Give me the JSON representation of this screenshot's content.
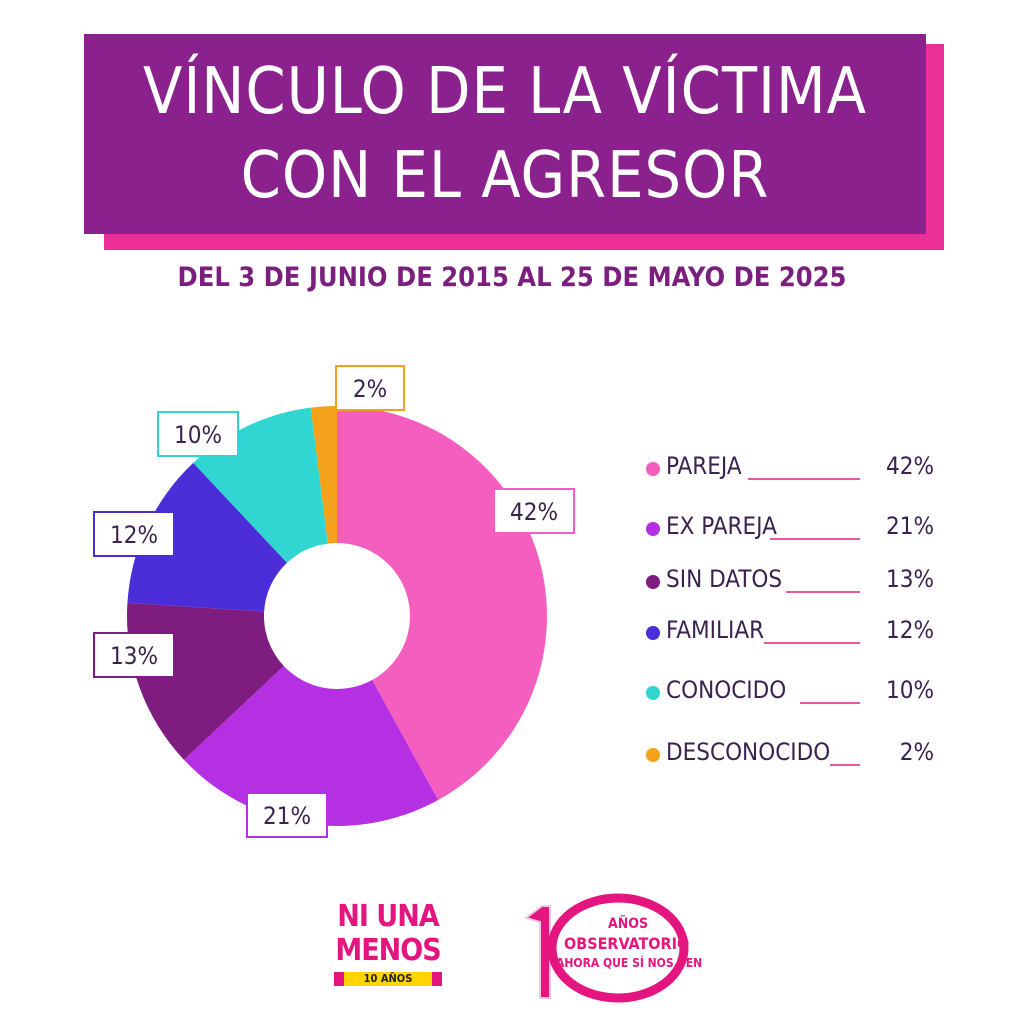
{
  "header": {
    "title_line1": "VÍNCULO DE LA VÍCTIMA",
    "title_line2": "CON EL AGRESOR",
    "subtitle": "DEL 3 DE JUNIO DE 2015 AL 25 DE MAYO DE 2025"
  },
  "chart_data": {
    "type": "pie",
    "title": "VÍNCULO DE LA VÍCTIMA CON EL AGRESOR",
    "subtitle": "DEL 3 DE JUNIO DE 2015 AL 25 DE MAYO DE 2025",
    "donut": true,
    "legend_position": "right",
    "unit": "%",
    "slices": [
      {
        "label": "PAREJA",
        "value": 42,
        "display": "42%",
        "color": "#f45fbf"
      },
      {
        "label": "EX PAREJA",
        "value": 21,
        "display": "21%",
        "color": "#b52fe3"
      },
      {
        "label": "SIN DATOS",
        "value": 13,
        "display": "13%",
        "color": "#7f1c80"
      },
      {
        "label": "FAMILIAR",
        "value": 12,
        "display": "12%",
        "color": "#4b2ed8"
      },
      {
        "label": "CONOCIDO",
        "value": 10,
        "display": "10%",
        "color": "#31d6d2"
      },
      {
        "label": "DESCONOCIDO",
        "value": 2,
        "display": "2%",
        "color": "#f4a21c"
      }
    ]
  },
  "logos": {
    "niunamenos_line1": "NI UNA",
    "niunamenos_line2": "MENOS",
    "niunamenos_years": "10 AÑOS",
    "observatorio_years": "AÑOS",
    "observatorio_name": "OBSERVATORIO",
    "observatorio_tagline": "AHORA QUE SÍ NOS VEN"
  }
}
